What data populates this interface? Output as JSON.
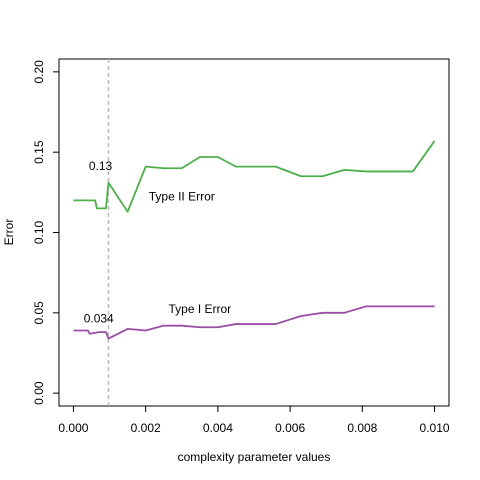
{
  "chart_data": {
    "type": "line",
    "xlabel": "complexity parameter values",
    "ylabel": "Error",
    "xlim": [
      -0.0004,
      0.0104
    ],
    "ylim": [
      -0.008,
      0.208
    ],
    "xticks": [
      0.0,
      0.002,
      0.004,
      0.006,
      0.008,
      0.01
    ],
    "xtick_labels": [
      "0.000",
      "0.002",
      "0.004",
      "0.006",
      "0.008",
      "0.010"
    ],
    "yticks": [
      0.0,
      0.05,
      0.1,
      0.15,
      0.2
    ],
    "ytick_labels": [
      "0.00",
      "0.05",
      "0.10",
      "0.15",
      "0.20"
    ],
    "grid": false,
    "vline": {
      "x": 0.00097,
      "style": "dashed",
      "color": "#bbbbbb"
    },
    "series": [
      {
        "name": "Type II Error",
        "color": "#4daf4a",
        "x": [
          0.0,
          0.0006,
          0.00065,
          0.0009,
          0.00097,
          0.0015,
          0.002,
          0.0025,
          0.003,
          0.0035,
          0.004,
          0.0045,
          0.005,
          0.0056,
          0.0063,
          0.0069,
          0.0075,
          0.0081,
          0.0087,
          0.0094,
          0.01
        ],
        "values": [
          0.12,
          0.12,
          0.115,
          0.115,
          0.131,
          0.113,
          0.141,
          0.14,
          0.14,
          0.147,
          0.147,
          0.141,
          0.141,
          0.141,
          0.135,
          0.135,
          0.139,
          0.138,
          0.138,
          0.138,
          0.157
        ]
      },
      {
        "name": "Type I Error",
        "color": "#984ea3",
        "x": [
          0.0,
          0.0004,
          0.00045,
          0.0007,
          0.0009,
          0.00097,
          0.0015,
          0.002,
          0.0025,
          0.003,
          0.0035,
          0.004,
          0.0045,
          0.005,
          0.0056,
          0.0063,
          0.0069,
          0.0075,
          0.0081,
          0.0087,
          0.0094,
          0.01
        ],
        "values": [
          0.039,
          0.039,
          0.037,
          0.038,
          0.038,
          0.034,
          0.04,
          0.039,
          0.042,
          0.042,
          0.041,
          0.041,
          0.043,
          0.043,
          0.043,
          0.048,
          0.05,
          0.05,
          0.054,
          0.054,
          0.054,
          0.054
        ]
      }
    ],
    "annotations": [
      {
        "text": "0.13",
        "x": 0.00075,
        "y": 0.139
      },
      {
        "text": "Type II Error",
        "x": 0.003,
        "y": 0.12
      },
      {
        "text": "0.034",
        "x": 0.0007,
        "y": 0.044
      },
      {
        "text": "Type I Error",
        "x": 0.0035,
        "y": 0.05
      }
    ]
  }
}
